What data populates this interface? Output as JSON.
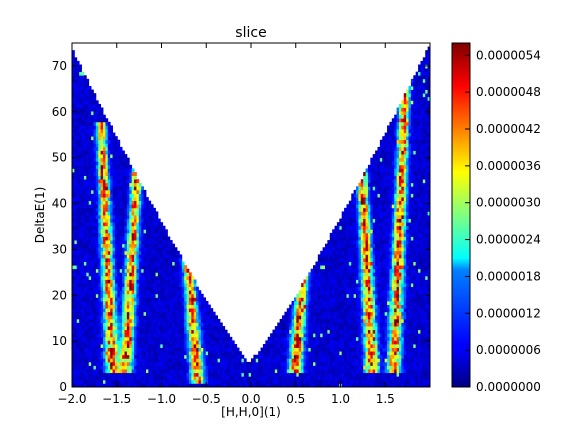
{
  "chart_data": {
    "type": "heatmap",
    "title": "slice",
    "xlabel": "[H,H,0](1)",
    "ylabel": "DeltaE(1)",
    "xlim": [
      -2.0,
      2.0
    ],
    "ylim": [
      0,
      75
    ],
    "xticks": [
      "−2.0",
      "−1.5",
      "−1.0",
      "−0.5",
      "0.0",
      "0.5",
      "1.0",
      "1.5"
    ],
    "yticks": [
      "0",
      "10",
      "20",
      "30",
      "40",
      "50",
      "60",
      "70"
    ],
    "colormap": "jet",
    "colorbar": {
      "min": 0.0,
      "max": 5.6e-06,
      "ticks": [
        "0.0000000",
        "0.0000006",
        "0.0000012",
        "0.0000018",
        "0.0000024",
        "0.0000030",
        "0.0000036",
        "0.0000042",
        "0.0000048",
        "0.0000054"
      ]
    },
    "features": [
      {
        "description": "dispersive branch",
        "x_center": -1.55,
        "energy_range": [
          5,
          55
        ]
      },
      {
        "description": "dispersive branch",
        "x_center": -1.4,
        "energy_range": [
          5,
          45
        ]
      },
      {
        "description": "dispersive branch",
        "x_center": -0.6,
        "energy_range": [
          3,
          30
        ]
      },
      {
        "description": "dispersive branch",
        "x_center": 0.5,
        "energy_range": [
          5,
          35
        ]
      },
      {
        "description": "dispersive branch",
        "x_center": 1.35,
        "energy_range": [
          5,
          50
        ]
      },
      {
        "description": "dispersive branch",
        "x_center": 1.6,
        "energy_range": [
          5,
          65
        ]
      }
    ],
    "grid": false,
    "legend": "none"
  }
}
